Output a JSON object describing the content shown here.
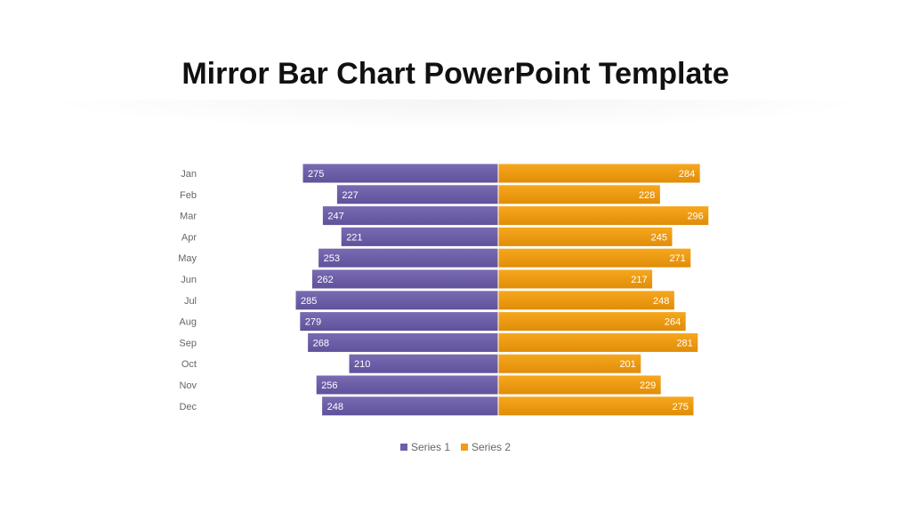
{
  "slide": {
    "title": "Mirror Bar Chart PowerPoint Template"
  },
  "chart_data": {
    "type": "bar",
    "orientation": "horizontal-mirror",
    "categories": [
      "Jan",
      "Feb",
      "Mar",
      "Apr",
      "May",
      "Jun",
      "Jul",
      "Aug",
      "Sep",
      "Oct",
      "Nov",
      "Dec"
    ],
    "series": [
      {
        "name": "Series 1",
        "color": "#6E5FA8",
        "values": [
          275,
          227,
          247,
          221,
          253,
          262,
          285,
          279,
          268,
          210,
          256,
          248
        ]
      },
      {
        "name": "Series 2",
        "color": "#F29C12",
        "values": [
          284,
          228,
          296,
          245,
          271,
          217,
          248,
          264,
          281,
          201,
          229,
          275
        ]
      }
    ],
    "data_labels": true,
    "legend_position": "bottom",
    "grid": false
  }
}
